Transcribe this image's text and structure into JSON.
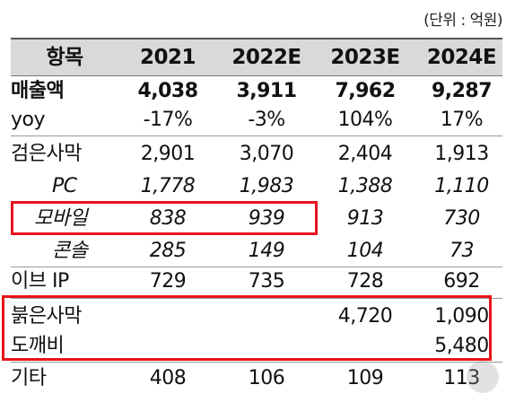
{
  "unit_label": "(단위 : 억원)",
  "header": {
    "label": "항목",
    "cols": [
      "2021",
      "2022E",
      "2023E",
      "2024E"
    ]
  },
  "rows": [
    {
      "label": "매출액",
      "values": [
        "4,038",
        "3,911",
        "7,962",
        "9,287"
      ]
    },
    {
      "label": "yoy",
      "values": [
        "-17%",
        "-3%",
        "104%",
        "17%"
      ]
    },
    {
      "label": "검은사막",
      "values": [
        "2,901",
        "3,070",
        "2,404",
        "1,913"
      ]
    },
    {
      "label": "PC",
      "values": [
        "1,778",
        "1,983",
        "1,388",
        "1,110"
      ]
    },
    {
      "label": "모바일",
      "values": [
        "838",
        "939",
        "913",
        "730"
      ]
    },
    {
      "label": "콘솔",
      "values": [
        "285",
        "149",
        "104",
        "73"
      ]
    },
    {
      "label": "이브 IP",
      "values": [
        "729",
        "735",
        "728",
        "692"
      ]
    },
    {
      "label": "붉은사막",
      "values": [
        "",
        "",
        "4,720",
        "1,090"
      ]
    },
    {
      "label": "도깨비",
      "values": [
        "",
        "",
        "",
        "5,480"
      ]
    },
    {
      "label": "기타",
      "values": [
        "408",
        "106",
        "109",
        "113"
      ]
    }
  ],
  "highlight_color": "#e8131b"
}
